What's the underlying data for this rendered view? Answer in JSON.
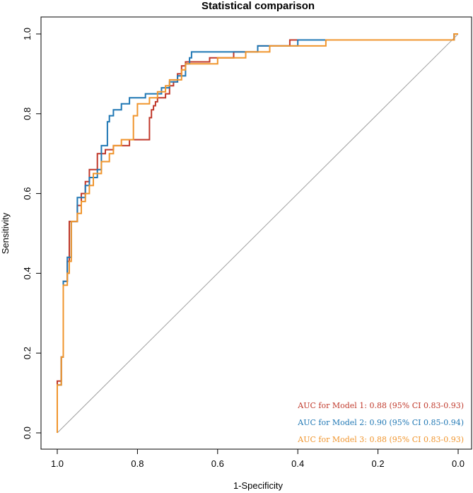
{
  "chart_data": {
    "type": "line",
    "title": "Statistical comparison",
    "xlabel": "1-Specificity",
    "ylabel": "Sensitivity",
    "x_reversed": true,
    "xlim": [
      1.0,
      0.0
    ],
    "ylim": [
      0.0,
      1.0
    ],
    "x_ticks": [
      1.0,
      0.8,
      0.6,
      0.4,
      0.2,
      0.0
    ],
    "x_tick_labels": [
      "1.0",
      "0.8",
      "0.6",
      "0.4",
      "0.2",
      "0.0"
    ],
    "y_ticks": [
      0.0,
      0.2,
      0.4,
      0.6,
      0.8,
      1.0
    ],
    "y_tick_labels": [
      "0.0",
      "0.2",
      "0.4",
      "0.6",
      "0.8",
      "1.0"
    ],
    "legend_position": "bottom-right",
    "reference_line": {
      "from": [
        1.0,
        0.0
      ],
      "to": [
        0.0,
        1.0
      ],
      "color": "#a0a0a0"
    },
    "series": [
      {
        "name": "AUC for Model 1: 0.88 (95% CI 0.83-0.93)",
        "color": "#c0392b",
        "points": [
          [
            1.0,
            0.0
          ],
          [
            1.0,
            0.13
          ],
          [
            0.99,
            0.13
          ],
          [
            0.99,
            0.19
          ],
          [
            0.985,
            0.19
          ],
          [
            0.985,
            0.38
          ],
          [
            0.975,
            0.38
          ],
          [
            0.975,
            0.43
          ],
          [
            0.97,
            0.43
          ],
          [
            0.97,
            0.53
          ],
          [
            0.95,
            0.53
          ],
          [
            0.95,
            0.57
          ],
          [
            0.94,
            0.57
          ],
          [
            0.94,
            0.6
          ],
          [
            0.93,
            0.6
          ],
          [
            0.93,
            0.63
          ],
          [
            0.92,
            0.63
          ],
          [
            0.92,
            0.66
          ],
          [
            0.9,
            0.66
          ],
          [
            0.9,
            0.7
          ],
          [
            0.88,
            0.7
          ],
          [
            0.88,
            0.71
          ],
          [
            0.86,
            0.71
          ],
          [
            0.86,
            0.72
          ],
          [
            0.82,
            0.72
          ],
          [
            0.82,
            0.735
          ],
          [
            0.77,
            0.735
          ],
          [
            0.77,
            0.79
          ],
          [
            0.765,
            0.79
          ],
          [
            0.765,
            0.81
          ],
          [
            0.76,
            0.81
          ],
          [
            0.76,
            0.82
          ],
          [
            0.755,
            0.82
          ],
          [
            0.755,
            0.83
          ],
          [
            0.75,
            0.83
          ],
          [
            0.75,
            0.84
          ],
          [
            0.73,
            0.84
          ],
          [
            0.73,
            0.85
          ],
          [
            0.72,
            0.85
          ],
          [
            0.72,
            0.87
          ],
          [
            0.71,
            0.87
          ],
          [
            0.71,
            0.88
          ],
          [
            0.7,
            0.88
          ],
          [
            0.7,
            0.9
          ],
          [
            0.69,
            0.9
          ],
          [
            0.69,
            0.92
          ],
          [
            0.68,
            0.92
          ],
          [
            0.68,
            0.93
          ],
          [
            0.62,
            0.93
          ],
          [
            0.62,
            0.94
          ],
          [
            0.56,
            0.94
          ],
          [
            0.56,
            0.955
          ],
          [
            0.5,
            0.955
          ],
          [
            0.5,
            0.97
          ],
          [
            0.42,
            0.97
          ],
          [
            0.42,
            0.985
          ],
          [
            0.01,
            0.985
          ],
          [
            0.01,
            1.0
          ],
          [
            0.0,
            1.0
          ]
        ]
      },
      {
        "name": "AUC for Model 2: 0.90 (95% CI 0.85-0.94)",
        "color": "#1f77b4",
        "points": [
          [
            1.0,
            0.0
          ],
          [
            1.0,
            0.12
          ],
          [
            0.99,
            0.12
          ],
          [
            0.99,
            0.19
          ],
          [
            0.985,
            0.19
          ],
          [
            0.985,
            0.38
          ],
          [
            0.975,
            0.38
          ],
          [
            0.975,
            0.44
          ],
          [
            0.965,
            0.44
          ],
          [
            0.965,
            0.53
          ],
          [
            0.95,
            0.53
          ],
          [
            0.95,
            0.59
          ],
          [
            0.93,
            0.59
          ],
          [
            0.93,
            0.62
          ],
          [
            0.92,
            0.62
          ],
          [
            0.92,
            0.64
          ],
          [
            0.9,
            0.64
          ],
          [
            0.9,
            0.66
          ],
          [
            0.89,
            0.66
          ],
          [
            0.89,
            0.72
          ],
          [
            0.875,
            0.72
          ],
          [
            0.875,
            0.78
          ],
          [
            0.87,
            0.78
          ],
          [
            0.87,
            0.795
          ],
          [
            0.86,
            0.795
          ],
          [
            0.86,
            0.81
          ],
          [
            0.84,
            0.81
          ],
          [
            0.84,
            0.825
          ],
          [
            0.82,
            0.825
          ],
          [
            0.82,
            0.84
          ],
          [
            0.78,
            0.84
          ],
          [
            0.78,
            0.85
          ],
          [
            0.74,
            0.85
          ],
          [
            0.74,
            0.865
          ],
          [
            0.72,
            0.865
          ],
          [
            0.72,
            0.88
          ],
          [
            0.7,
            0.88
          ],
          [
            0.7,
            0.895
          ],
          [
            0.68,
            0.895
          ],
          [
            0.68,
            0.925
          ],
          [
            0.67,
            0.925
          ],
          [
            0.67,
            0.94
          ],
          [
            0.665,
            0.94
          ],
          [
            0.665,
            0.955
          ],
          [
            0.5,
            0.955
          ],
          [
            0.5,
            0.97
          ],
          [
            0.4,
            0.97
          ],
          [
            0.4,
            0.985
          ],
          [
            0.01,
            0.985
          ],
          [
            0.01,
            1.0
          ],
          [
            0.0,
            1.0
          ]
        ]
      },
      {
        "name": "AUC for Model 3: 0.88 (95% CI 0.83-0.93)",
        "color": "#f0952d",
        "points": [
          [
            1.0,
            0.0
          ],
          [
            1.0,
            0.12
          ],
          [
            0.99,
            0.12
          ],
          [
            0.99,
            0.19
          ],
          [
            0.985,
            0.19
          ],
          [
            0.985,
            0.37
          ],
          [
            0.975,
            0.37
          ],
          [
            0.975,
            0.4
          ],
          [
            0.97,
            0.4
          ],
          [
            0.97,
            0.43
          ],
          [
            0.965,
            0.43
          ],
          [
            0.965,
            0.53
          ],
          [
            0.95,
            0.53
          ],
          [
            0.95,
            0.55
          ],
          [
            0.94,
            0.55
          ],
          [
            0.94,
            0.58
          ],
          [
            0.93,
            0.58
          ],
          [
            0.93,
            0.6
          ],
          [
            0.92,
            0.6
          ],
          [
            0.92,
            0.62
          ],
          [
            0.91,
            0.62
          ],
          [
            0.91,
            0.65
          ],
          [
            0.89,
            0.65
          ],
          [
            0.89,
            0.68
          ],
          [
            0.87,
            0.68
          ],
          [
            0.87,
            0.7
          ],
          [
            0.86,
            0.7
          ],
          [
            0.86,
            0.72
          ],
          [
            0.84,
            0.72
          ],
          [
            0.84,
            0.735
          ],
          [
            0.81,
            0.735
          ],
          [
            0.81,
            0.795
          ],
          [
            0.8,
            0.795
          ],
          [
            0.8,
            0.825
          ],
          [
            0.77,
            0.825
          ],
          [
            0.77,
            0.84
          ],
          [
            0.75,
            0.84
          ],
          [
            0.75,
            0.855
          ],
          [
            0.73,
            0.855
          ],
          [
            0.73,
            0.87
          ],
          [
            0.72,
            0.87
          ],
          [
            0.72,
            0.885
          ],
          [
            0.69,
            0.885
          ],
          [
            0.69,
            0.91
          ],
          [
            0.68,
            0.91
          ],
          [
            0.68,
            0.925
          ],
          [
            0.6,
            0.925
          ],
          [
            0.6,
            0.94
          ],
          [
            0.53,
            0.94
          ],
          [
            0.53,
            0.955
          ],
          [
            0.47,
            0.955
          ],
          [
            0.47,
            0.97
          ],
          [
            0.33,
            0.97
          ],
          [
            0.33,
            0.985
          ],
          [
            0.01,
            0.985
          ],
          [
            0.01,
            1.0
          ],
          [
            0.0,
            1.0
          ]
        ]
      }
    ]
  }
}
